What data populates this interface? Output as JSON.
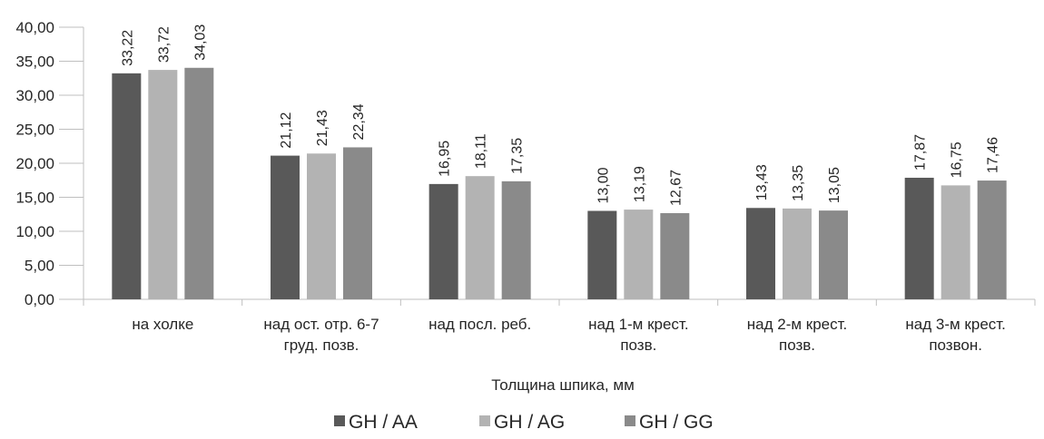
{
  "chart_data": {
    "type": "bar",
    "title": "",
    "xlabel": "Толщина шпика, мм",
    "ylabel": "",
    "ylim": [
      0,
      40
    ],
    "ytick_step": 5,
    "ytick_labels": [
      "0,00",
      "5,00",
      "10,00",
      "15,00",
      "20,00",
      "25,00",
      "30,00",
      "35,00",
      "40,00"
    ],
    "grid": false,
    "legend_position": "bottom",
    "categories": [
      [
        "на холке"
      ],
      [
        "над ост. отр. 6-7",
        "груд.  позв."
      ],
      [
        "над посл. реб."
      ],
      [
        "над 1-м крест.",
        "позв."
      ],
      [
        "над 2-м крест.",
        "позв."
      ],
      [
        "над 3-м крест.",
        "позвон."
      ]
    ],
    "series": [
      {
        "name": "GH / AA",
        "color": "#595959",
        "values": [
          33.22,
          21.12,
          16.95,
          13.0,
          13.43,
          17.87
        ],
        "labels": [
          "33,22",
          "21,12",
          "16,95",
          "13,00",
          "13,43",
          "17,87"
        ]
      },
      {
        "name": "GH / AG",
        "color": "#b3b3b3",
        "values": [
          33.72,
          21.43,
          18.11,
          13.19,
          13.35,
          16.75
        ],
        "labels": [
          "33,72",
          "21,43",
          "18,11",
          "13,19",
          "13,35",
          "16,75"
        ]
      },
      {
        "name": "GH / GG",
        "color": "#8a8a8a",
        "values": [
          34.03,
          22.34,
          17.35,
          12.67,
          13.05,
          17.46
        ],
        "labels": [
          "34,03",
          "22,34",
          "17,35",
          "12,67",
          "13,05",
          "17,46"
        ]
      }
    ]
  }
}
